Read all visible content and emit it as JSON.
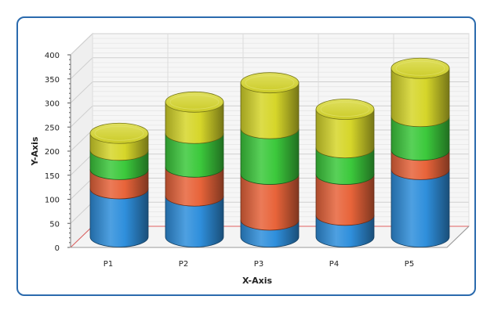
{
  "chart_data": {
    "type": "bar",
    "subtype": "stacked-3d-cylinder",
    "categories": [
      "P1",
      "P2",
      "P3",
      "P4",
      "P5"
    ],
    "series": [
      {
        "color": "#2f8fdc",
        "values": [
          100,
          85,
          35,
          45,
          140
        ]
      },
      {
        "color": "#e8643a",
        "values": [
          40,
          60,
          95,
          85,
          40
        ]
      },
      {
        "color": "#3cc93c",
        "values": [
          40,
          70,
          95,
          55,
          70
        ]
      },
      {
        "color": "#d6d62a",
        "values": [
          35,
          65,
          95,
          80,
          100
        ]
      }
    ],
    "xlabel": "X-Axis",
    "ylabel": "Y-Axis",
    "ylim": [
      0,
      400
    ],
    "yticks": [
      0,
      50,
      100,
      150,
      200,
      250,
      300,
      350,
      400
    ],
    "grid": true,
    "legend": "none"
  }
}
